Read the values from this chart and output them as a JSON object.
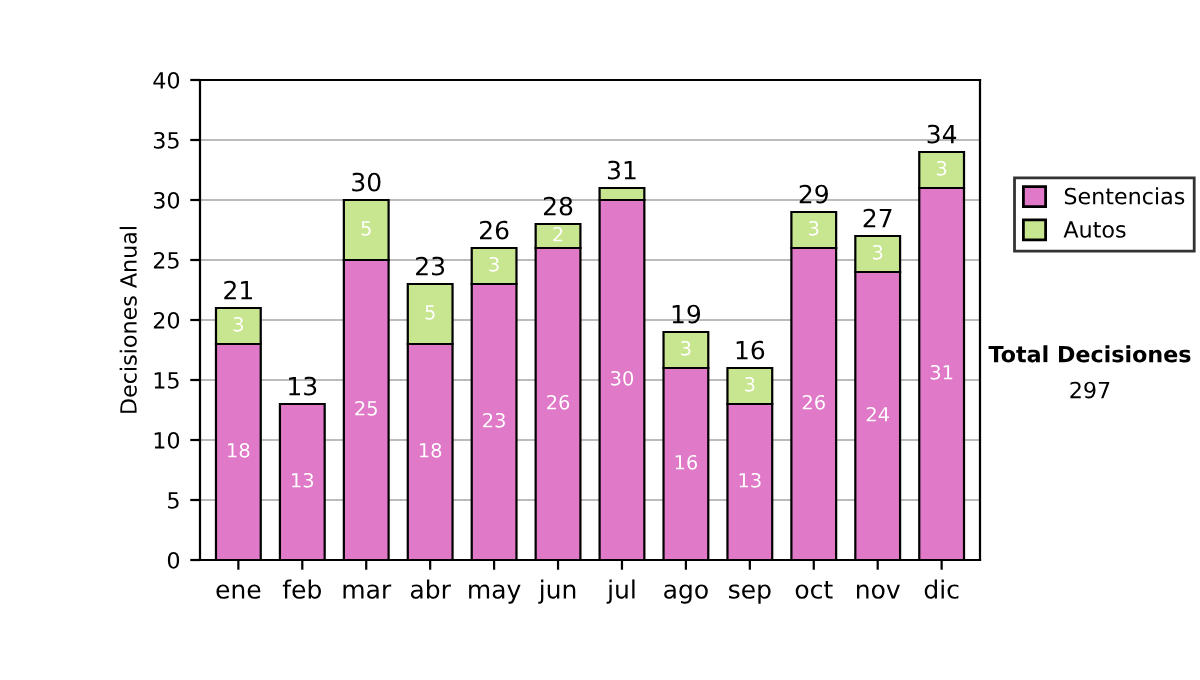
{
  "chart_data": {
    "type": "bar",
    "stacked": true,
    "ylabel": "Decisiones Anual",
    "categories": [
      "ene",
      "feb",
      "mar",
      "abr",
      "may",
      "jun",
      "jul",
      "ago",
      "sep",
      "oct",
      "nov",
      "dic"
    ],
    "series": [
      {
        "name": "Sentencias",
        "color": "#e07ac8",
        "values": [
          18,
          13,
          25,
          18,
          23,
          26,
          30,
          16,
          13,
          26,
          24,
          31
        ],
        "value_labels": [
          "18",
          "13",
          "25",
          "18",
          "23",
          "26",
          "30",
          "16",
          "13",
          "26",
          "24",
          "31"
        ]
      },
      {
        "name": "Autos",
        "color": "#c8e690",
        "values": [
          3,
          null,
          5,
          5,
          3,
          2,
          1,
          3,
          3,
          3,
          3,
          3
        ],
        "value_labels": [
          "3",
          null,
          "5",
          "5",
          "3",
          "2",
          null,
          "3",
          "3",
          "3",
          "3",
          "3"
        ]
      }
    ],
    "totals": [
      "21",
      "13",
      "30",
      "23",
      "26",
      "28",
      "31",
      "19",
      "16",
      "29",
      "27",
      "34"
    ],
    "ylim": [
      0,
      40
    ],
    "yticks": [
      0,
      5,
      10,
      15,
      20,
      25,
      30,
      35,
      40
    ],
    "grid": "y",
    "legend": "right",
    "annotations": [
      "Total Decisiones",
      "297"
    ]
  }
}
